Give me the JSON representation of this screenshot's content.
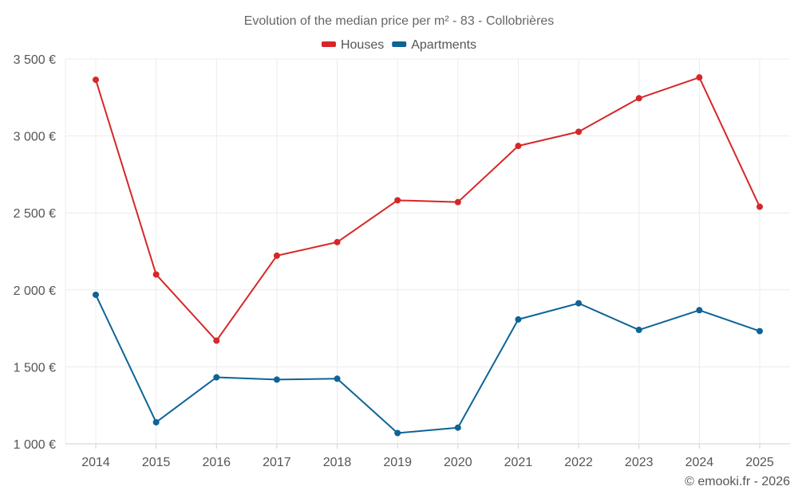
{
  "chart_data": {
    "type": "line",
    "title": "Evolution of the median price per m² - 83 - Collobrières",
    "categories": [
      "2014",
      "2015",
      "2016",
      "2017",
      "2018",
      "2019",
      "2020",
      "2021",
      "2022",
      "2023",
      "2024",
      "2025"
    ],
    "y_ticks": [
      1000,
      1500,
      2000,
      2500,
      3000,
      3500
    ],
    "y_tick_labels": [
      "1 000 €",
      "1 500 €",
      "2 000 €",
      "2 500 €",
      "3 000 €",
      "3 500 €"
    ],
    "ylim": [
      1000,
      3500
    ],
    "legend_position": "top-center",
    "series": [
      {
        "name": "Houses",
        "color": "#d62728",
        "values": [
          3365,
          2100,
          1670,
          2222,
          2310,
          2582,
          2570,
          2935,
          3027,
          3245,
          3380,
          2540
        ]
      },
      {
        "name": "Apartments",
        "color": "#0d6496",
        "values": [
          1968,
          1140,
          1432,
          1417,
          1423,
          1070,
          1105,
          1808,
          1913,
          1740,
          1868,
          1732
        ]
      }
    ]
  },
  "credit": "© emooki.fr - 2026"
}
